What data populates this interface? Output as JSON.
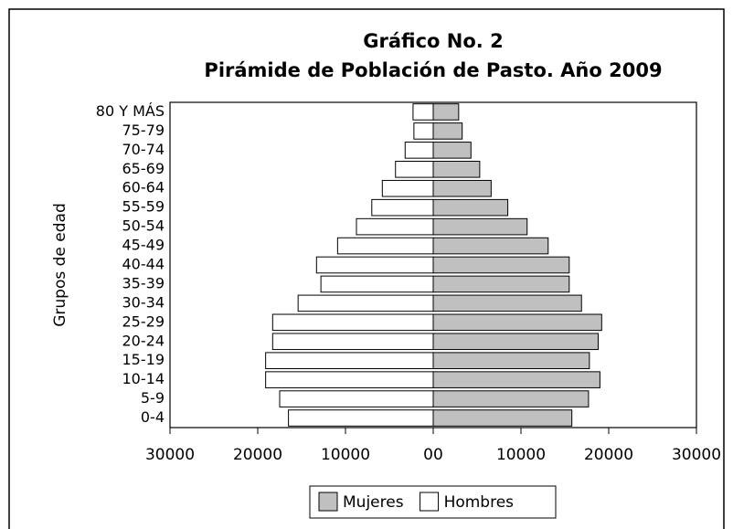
{
  "chart_data": {
    "type": "pyramid",
    "title": [
      "Gráfico No. 2",
      "Pirámide de Población de Pasto. Año 2009"
    ],
    "y_label": "Grupos de edad",
    "categories": [
      "0-4",
      "5-9",
      "10-14",
      "15-19",
      "20-24",
      "25-29",
      "30-34",
      "35-39",
      "40-44",
      "45-49",
      "50-54",
      "55-59",
      "60-64",
      "65-69",
      "70-74",
      "75-79",
      "80 Y MÁS"
    ],
    "series": [
      {
        "name": "Mujeres",
        "color": "#c0c0c0",
        "values": [
          15800,
          17700,
          19000,
          17800,
          18800,
          19200,
          16900,
          15500,
          15500,
          13100,
          10700,
          8500,
          6600,
          5300,
          4300,
          3300,
          2900
        ]
      },
      {
        "name": "Hombres",
        "color": "#ffffff",
        "values": [
          -16500,
          -17500,
          -19100,
          -19100,
          -18300,
          -18300,
          -15400,
          -12800,
          -13300,
          -10900,
          -8750,
          -7000,
          -5800,
          -4300,
          -3200,
          -2200,
          -2300
        ]
      }
    ],
    "xlim": [
      -30000,
      30000
    ],
    "xticks": [
      {
        "value": -30000,
        "label": "30000"
      },
      {
        "value": -20000,
        "label": "20000"
      },
      {
        "value": -10000,
        "label": "10000"
      },
      {
        "value": 0,
        "label": "00"
      },
      10000,
      20000,
      30000
    ],
    "legend": "bottom"
  }
}
